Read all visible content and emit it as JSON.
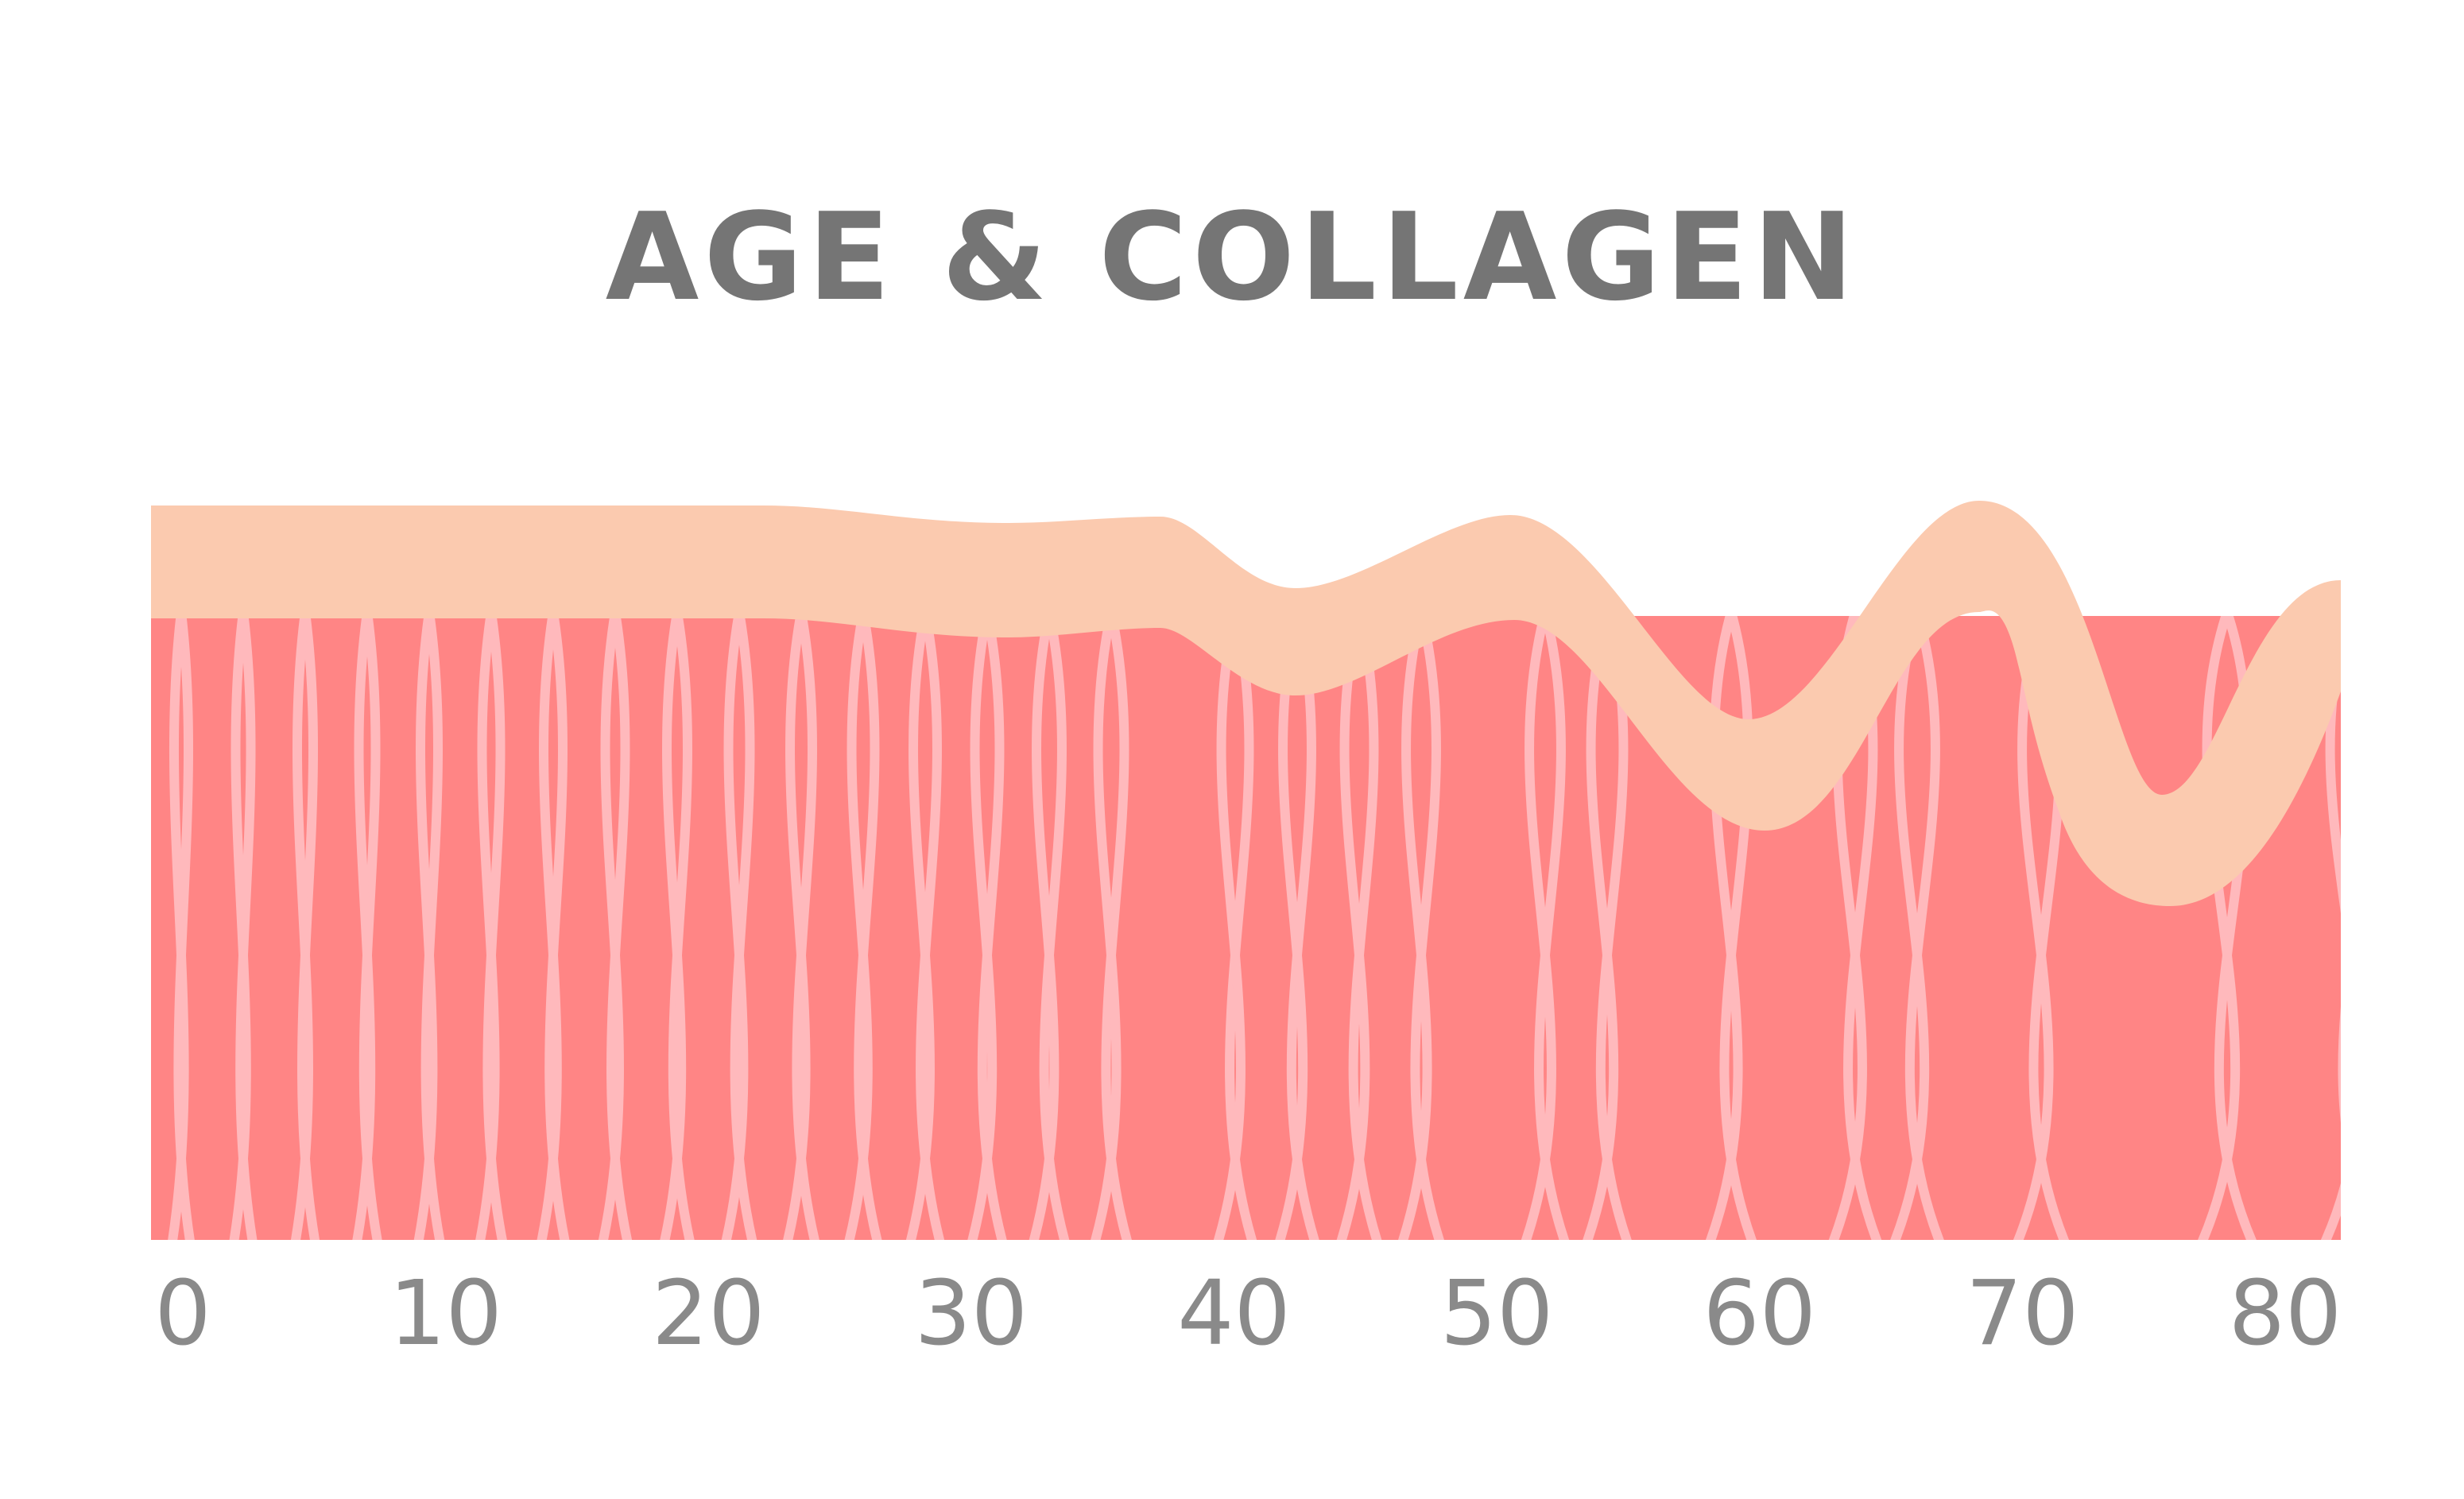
{
  "title": "AGE & COLLAGEN",
  "age_axis": {
    "ticks": [
      "0",
      "10",
      "20",
      "30",
      "40",
      "50",
      "60",
      "70",
      "80"
    ],
    "min": 0,
    "max": 80
  },
  "colors": {
    "dermis": "#ff8585",
    "collagen_fiber": "#ffb9bc",
    "epidermis": "#fbcaaf",
    "title": "#757575",
    "tick_label": "#8a8a8a"
  }
}
